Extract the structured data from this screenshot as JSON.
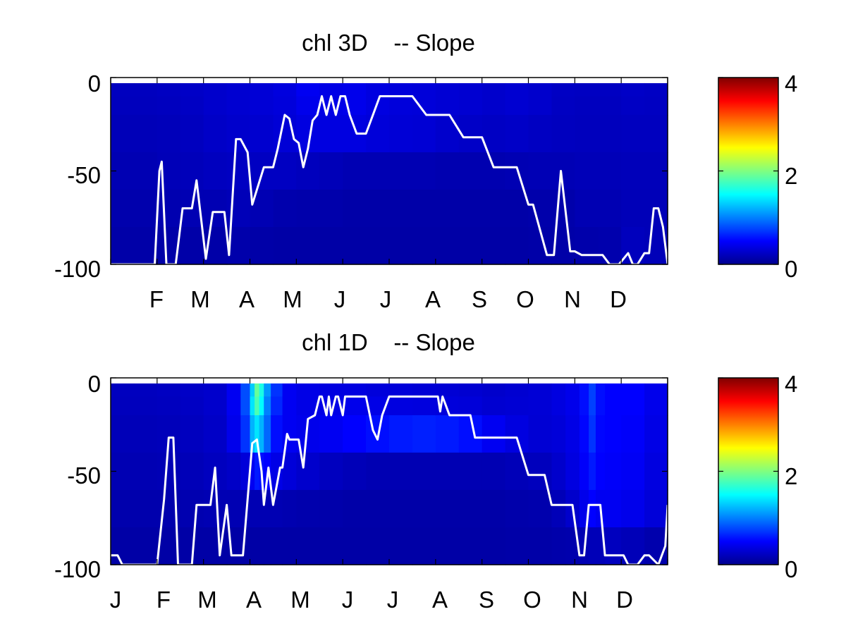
{
  "colormap": "jet",
  "colors": {
    "background": "#ffffff",
    "axes_frame": "#000000",
    "line": "#ffffff",
    "top_band": "#ffffff"
  },
  "chart_data": [
    {
      "type": "heatmap",
      "title": "chl 3D    -- Slope",
      "xlabel": "",
      "ylabel": "",
      "x_tick_labels": [
        "F",
        "M",
        "A",
        "M",
        "J",
        "J",
        "A",
        "S",
        "O",
        "N",
        "D"
      ],
      "y_ticks": [
        "0",
        "-50",
        "-100"
      ],
      "ylim": [
        -100,
        0
      ],
      "x_range_months": [
        0,
        12
      ],
      "colorbar": {
        "clim": [
          0,
          4
        ],
        "tick_labels": [
          "0",
          "2",
          "4"
        ]
      },
      "grid": false,
      "depth_layer_bounds": [
        -3,
        -10,
        -20,
        -40,
        -60,
        -80,
        -100
      ],
      "columns": [
        {
          "x": [
            0.0,
            0.5
          ],
          "v": [
            0.25,
            0.24,
            0.22,
            0.2,
            0.18,
            0.16
          ]
        },
        {
          "x": [
            0.5,
            1.0
          ],
          "v": [
            0.25,
            0.24,
            0.22,
            0.2,
            0.18,
            0.16
          ]
        },
        {
          "x": [
            1.0,
            1.5
          ],
          "v": [
            0.26,
            0.25,
            0.23,
            0.22,
            0.19,
            0.16
          ]
        },
        {
          "x": [
            1.5,
            2.0
          ],
          "v": [
            0.28,
            0.27,
            0.25,
            0.23,
            0.2,
            0.16
          ]
        },
        {
          "x": [
            2.0,
            2.5
          ],
          "v": [
            0.3,
            0.3,
            0.28,
            0.25,
            0.2,
            0.16
          ]
        },
        {
          "x": [
            2.5,
            3.0
          ],
          "v": [
            0.32,
            0.32,
            0.3,
            0.26,
            0.22,
            0.17
          ]
        },
        {
          "x": [
            3.0,
            3.5
          ],
          "v": [
            0.34,
            0.34,
            0.31,
            0.26,
            0.2,
            0.16
          ]
        },
        {
          "x": [
            3.5,
            4.0
          ],
          "v": [
            0.37,
            0.36,
            0.34,
            0.26,
            0.18,
            0.15
          ]
        },
        {
          "x": [
            4.0,
            4.5
          ],
          "v": [
            0.45,
            0.42,
            0.38,
            0.24,
            0.17,
            0.15
          ]
        },
        {
          "x": [
            4.5,
            5.0
          ],
          "v": [
            0.4,
            0.4,
            0.38,
            0.22,
            0.17,
            0.15
          ]
        },
        {
          "x": [
            5.0,
            5.5
          ],
          "v": [
            0.42,
            0.42,
            0.38,
            0.2,
            0.16,
            0.15
          ]
        },
        {
          "x": [
            5.5,
            6.0
          ],
          "v": [
            0.38,
            0.38,
            0.35,
            0.2,
            0.16,
            0.15
          ]
        },
        {
          "x": [
            6.0,
            6.5
          ],
          "v": [
            0.36,
            0.36,
            0.34,
            0.2,
            0.16,
            0.15
          ]
        },
        {
          "x": [
            6.5,
            7.0
          ],
          "v": [
            0.35,
            0.35,
            0.33,
            0.2,
            0.16,
            0.15
          ]
        },
        {
          "x": [
            7.0,
            7.5
          ],
          "v": [
            0.33,
            0.33,
            0.3,
            0.19,
            0.16,
            0.15
          ]
        },
        {
          "x": [
            7.5,
            8.0
          ],
          "v": [
            0.32,
            0.32,
            0.28,
            0.19,
            0.16,
            0.15
          ]
        },
        {
          "x": [
            8.0,
            8.5
          ],
          "v": [
            0.3,
            0.3,
            0.27,
            0.19,
            0.16,
            0.15
          ]
        },
        {
          "x": [
            8.5,
            9.0
          ],
          "v": [
            0.32,
            0.32,
            0.28,
            0.2,
            0.16,
            0.15
          ]
        },
        {
          "x": [
            9.0,
            9.5
          ],
          "v": [
            0.3,
            0.3,
            0.26,
            0.21,
            0.17,
            0.16
          ]
        },
        {
          "x": [
            9.5,
            10.0
          ],
          "v": [
            0.27,
            0.26,
            0.25,
            0.21,
            0.17,
            0.16
          ]
        },
        {
          "x": [
            10.0,
            10.5
          ],
          "v": [
            0.26,
            0.25,
            0.24,
            0.22,
            0.2,
            0.17
          ]
        },
        {
          "x": [
            10.5,
            11.0
          ],
          "v": [
            0.26,
            0.25,
            0.24,
            0.22,
            0.2,
            0.18
          ]
        },
        {
          "x": [
            11.0,
            11.5
          ],
          "v": [
            0.28,
            0.27,
            0.25,
            0.23,
            0.22,
            0.24
          ]
        },
        {
          "x": [
            11.5,
            12.0
          ],
          "v": [
            0.27,
            0.26,
            0.25,
            0.23,
            0.22,
            0.22
          ]
        }
      ],
      "line": {
        "x": [
          0.0,
          0.25,
          0.5,
          0.75,
          0.95,
          1.05,
          1.1,
          1.2,
          1.3,
          1.4,
          1.55,
          1.75,
          1.85,
          2.05,
          2.2,
          2.3,
          2.45,
          2.55,
          2.7,
          2.8,
          2.95,
          3.05,
          3.3,
          3.5,
          3.6,
          3.75,
          3.85,
          3.95,
          4.05,
          4.15,
          4.25,
          4.35,
          4.45,
          4.55,
          4.65,
          4.75,
          4.85,
          4.95,
          5.05,
          5.15,
          5.3,
          5.5,
          5.65,
          5.8,
          5.95,
          6.1,
          6.3,
          6.5,
          6.8,
          7.0,
          7.15,
          7.3,
          7.6,
          7.8,
          8.0,
          8.25,
          8.5,
          8.75,
          9.0,
          9.1,
          9.4,
          9.55,
          9.7,
          9.9,
          10.0,
          10.15,
          10.3,
          10.45,
          10.6,
          10.75,
          10.95,
          11.15,
          11.25,
          11.35,
          11.5,
          11.6,
          11.7,
          11.8,
          11.9,
          12.0
        ],
        "y": [
          -100,
          -100,
          -100,
          -100,
          -100,
          -50,
          -45,
          -100,
          -100,
          -100,
          -70,
          -70,
          -55,
          -97,
          -72,
          -72,
          -72,
          -95,
          -33,
          -33,
          -40,
          -68,
          -48,
          -48,
          -38,
          -20,
          -22,
          -33,
          -35,
          -48,
          -38,
          -23,
          -20,
          -10,
          -20,
          -10,
          -20,
          -10,
          -10,
          -20,
          -30,
          -30,
          -20,
          -10,
          -10,
          -10,
          -10,
          -10,
          -20,
          -20,
          -20,
          -20,
          -32,
          -32,
          -32,
          -48,
          -48,
          -48,
          -68,
          -68,
          -95,
          -95,
          -50,
          -93,
          -93,
          -95,
          -95,
          -95,
          -95,
          -100,
          -100,
          -94,
          -100,
          -100,
          -94,
          -94,
          -70,
          -70,
          -80,
          -100
        ]
      }
    },
    {
      "type": "heatmap",
      "title": "chl 1D    -- Slope",
      "xlabel": "",
      "ylabel": "",
      "x_tick_labels": [
        "J",
        "F",
        "M",
        "A",
        "M",
        "J",
        "J",
        "A",
        "S",
        "O",
        "N",
        "D"
      ],
      "y_ticks": [
        "0",
        "-50",
        "-100"
      ],
      "ylim": [
        -100,
        0
      ],
      "x_range_months": [
        0,
        12
      ],
      "colorbar": {
        "clim": [
          0,
          4
        ],
        "tick_labels": [
          "0",
          "2",
          "4"
        ]
      },
      "grid": false,
      "depth_layer_bounds": [
        -3,
        -10,
        -20,
        -40,
        -60,
        -80,
        -100
      ],
      "columns": [
        {
          "x": [
            0.0,
            0.5
          ],
          "v": [
            0.25,
            0.24,
            0.22,
            0.2,
            0.18,
            0.15
          ]
        },
        {
          "x": [
            0.5,
            1.0
          ],
          "v": [
            0.25,
            0.24,
            0.22,
            0.2,
            0.18,
            0.15
          ]
        },
        {
          "x": [
            1.0,
            1.5
          ],
          "v": [
            0.26,
            0.25,
            0.23,
            0.21,
            0.18,
            0.15
          ]
        },
        {
          "x": [
            1.5,
            2.0
          ],
          "v": [
            0.28,
            0.27,
            0.25,
            0.22,
            0.19,
            0.15
          ]
        },
        {
          "x": [
            2.0,
            2.5
          ],
          "v": [
            0.3,
            0.3,
            0.28,
            0.25,
            0.2,
            0.15
          ]
        },
        {
          "x": [
            2.5,
            2.8
          ],
          "v": [
            0.45,
            0.45,
            0.42,
            0.28,
            0.2,
            0.15
          ]
        },
        {
          "x": [
            2.8,
            3.0
          ],
          "v": [
            0.8,
            0.8,
            0.7,
            0.35,
            0.2,
            0.15
          ]
        },
        {
          "x": [
            3.0,
            3.1
          ],
          "v": [
            1.3,
            1.4,
            1.2,
            0.45,
            0.2,
            0.15
          ]
        },
        {
          "x": [
            3.1,
            3.2
          ],
          "v": [
            1.9,
            1.8,
            1.4,
            0.6,
            0.2,
            0.15
          ]
        },
        {
          "x": [
            3.2,
            3.3
          ],
          "v": [
            1.6,
            1.5,
            1.2,
            0.55,
            0.2,
            0.15
          ]
        },
        {
          "x": [
            3.3,
            3.45
          ],
          "v": [
            1.1,
            1.0,
            0.9,
            0.5,
            0.2,
            0.15
          ]
        },
        {
          "x": [
            3.45,
            3.7
          ],
          "v": [
            0.7,
            0.65,
            0.55,
            0.4,
            0.2,
            0.15
          ]
        },
        {
          "x": [
            3.7,
            4.0
          ],
          "v": [
            0.45,
            0.45,
            0.45,
            0.35,
            0.19,
            0.15
          ]
        },
        {
          "x": [
            4.0,
            4.5
          ],
          "v": [
            0.4,
            0.4,
            0.42,
            0.3,
            0.18,
            0.15
          ]
        },
        {
          "x": [
            4.5,
            5.0
          ],
          "v": [
            0.38,
            0.4,
            0.45,
            0.25,
            0.17,
            0.15
          ]
        },
        {
          "x": [
            5.0,
            5.5
          ],
          "v": [
            0.38,
            0.42,
            0.5,
            0.22,
            0.16,
            0.15
          ]
        },
        {
          "x": [
            5.5,
            6.0
          ],
          "v": [
            0.36,
            0.4,
            0.55,
            0.2,
            0.16,
            0.15
          ]
        },
        {
          "x": [
            6.0,
            6.5
          ],
          "v": [
            0.35,
            0.38,
            0.6,
            0.2,
            0.16,
            0.15
          ]
        },
        {
          "x": [
            6.5,
            7.0
          ],
          "v": [
            0.34,
            0.37,
            0.62,
            0.2,
            0.16,
            0.15
          ]
        },
        {
          "x": [
            7.0,
            7.5
          ],
          "v": [
            0.33,
            0.36,
            0.6,
            0.2,
            0.16,
            0.15
          ]
        },
        {
          "x": [
            7.5,
            8.0
          ],
          "v": [
            0.32,
            0.35,
            0.55,
            0.2,
            0.16,
            0.15
          ]
        },
        {
          "x": [
            8.0,
            8.5
          ],
          "v": [
            0.3,
            0.32,
            0.45,
            0.2,
            0.16,
            0.15
          ]
        },
        {
          "x": [
            8.5,
            9.0
          ],
          "v": [
            0.32,
            0.33,
            0.38,
            0.22,
            0.17,
            0.16
          ]
        },
        {
          "x": [
            9.0,
            9.5
          ],
          "v": [
            0.34,
            0.34,
            0.33,
            0.24,
            0.18,
            0.16
          ]
        },
        {
          "x": [
            9.5,
            9.8
          ],
          "v": [
            0.38,
            0.38,
            0.35,
            0.3,
            0.22,
            0.17
          ]
        },
        {
          "x": [
            9.8,
            10.1
          ],
          "v": [
            0.42,
            0.42,
            0.4,
            0.38,
            0.3,
            0.18
          ]
        },
        {
          "x": [
            10.1,
            10.3
          ],
          "v": [
            0.55,
            0.55,
            0.52,
            0.48,
            0.42,
            0.2
          ]
        },
        {
          "x": [
            10.3,
            10.45
          ],
          "v": [
            0.75,
            0.75,
            0.7,
            0.6,
            0.5,
            0.22
          ]
        },
        {
          "x": [
            10.45,
            10.65
          ],
          "v": [
            0.55,
            0.55,
            0.52,
            0.5,
            0.45,
            0.22
          ]
        },
        {
          "x": [
            10.65,
            11.0
          ],
          "v": [
            0.5,
            0.5,
            0.5,
            0.48,
            0.45,
            0.25
          ]
        },
        {
          "x": [
            11.0,
            11.5
          ],
          "v": [
            0.5,
            0.5,
            0.48,
            0.46,
            0.42,
            0.22
          ]
        },
        {
          "x": [
            11.5,
            12.0
          ],
          "v": [
            0.42,
            0.42,
            0.4,
            0.38,
            0.35,
            0.18
          ]
        }
      ],
      "line": {
        "x": [
          0.0,
          0.15,
          0.25,
          0.5,
          0.75,
          1.0,
          1.15,
          1.25,
          1.35,
          1.45,
          1.55,
          1.75,
          1.85,
          1.95,
          2.05,
          2.15,
          2.25,
          2.35,
          2.5,
          2.6,
          2.75,
          2.85,
          3.05,
          3.15,
          3.25,
          3.3,
          3.4,
          3.5,
          3.65,
          3.7,
          3.8,
          3.85,
          4.05,
          4.15,
          4.25,
          4.4,
          4.5,
          4.55,
          4.65,
          4.7,
          4.75,
          4.85,
          4.9,
          5.0,
          5.05,
          5.15,
          5.35,
          5.5,
          5.65,
          5.75,
          5.85,
          6.0,
          6.15,
          6.25,
          6.5,
          6.75,
          7.05,
          7.1,
          7.15,
          7.3,
          7.5,
          7.75,
          7.85,
          8.0,
          8.25,
          8.5,
          8.75,
          9.0,
          9.25,
          9.35,
          9.5,
          9.75,
          9.95,
          10.1,
          10.2,
          10.3,
          10.45,
          10.55,
          10.65,
          10.75,
          10.95,
          11.05,
          11.15,
          11.35,
          11.5,
          11.6,
          11.8,
          11.95,
          12.0
        ],
        "y": [
          -95,
          -95,
          -100,
          -100,
          -100,
          -100,
          -65,
          -32,
          -32,
          -100,
          -100,
          -100,
          -68,
          -68,
          -68,
          -68,
          -48,
          -95,
          -68,
          -95,
          -95,
          -95,
          -35,
          -33,
          -50,
          -68,
          -48,
          -68,
          -48,
          -48,
          -30,
          -33,
          -33,
          -48,
          -22,
          -20,
          -10,
          -10,
          -20,
          -10,
          -20,
          -10,
          -10,
          -20,
          -10,
          -10,
          -10,
          -10,
          -28,
          -33,
          -20,
          -10,
          -10,
          -10,
          -10,
          -10,
          -10,
          -18,
          -10,
          -20,
          -20,
          -20,
          -32,
          -32,
          -32,
          -32,
          -32,
          -52,
          -52,
          -52,
          -68,
          -68,
          -68,
          -95,
          -95,
          -68,
          -68,
          -68,
          -95,
          -95,
          -95,
          -95,
          -100,
          -100,
          -95,
          -95,
          -100,
          -90,
          -68
        ]
      }
    }
  ]
}
